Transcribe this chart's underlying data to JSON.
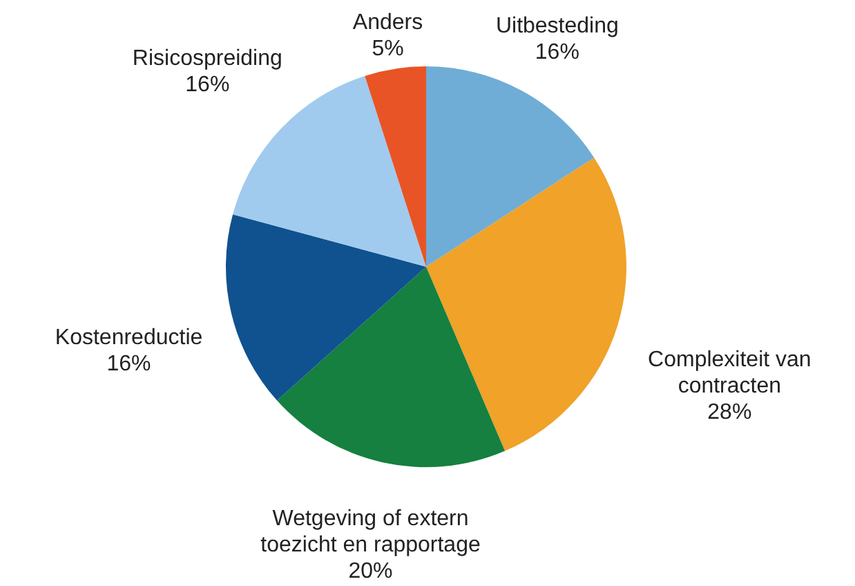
{
  "chart_data": {
    "type": "pie",
    "categories": [
      "Uitbesteding",
      "Complexiteit van contracten",
      "Wetgeving of extern toezicht en rapportage",
      "Kostenreductie",
      "Risicospreiding",
      "Anders"
    ],
    "values": [
      16,
      28,
      20,
      16,
      16,
      5
    ],
    "value_labels": [
      "16%",
      "28%",
      "20%",
      "16%",
      "16%",
      "5%"
    ],
    "colors": [
      "#6fadd6",
      "#f0a229",
      "#158040",
      "#0f528f",
      "#a0cbee",
      "#e85425"
    ]
  }
}
